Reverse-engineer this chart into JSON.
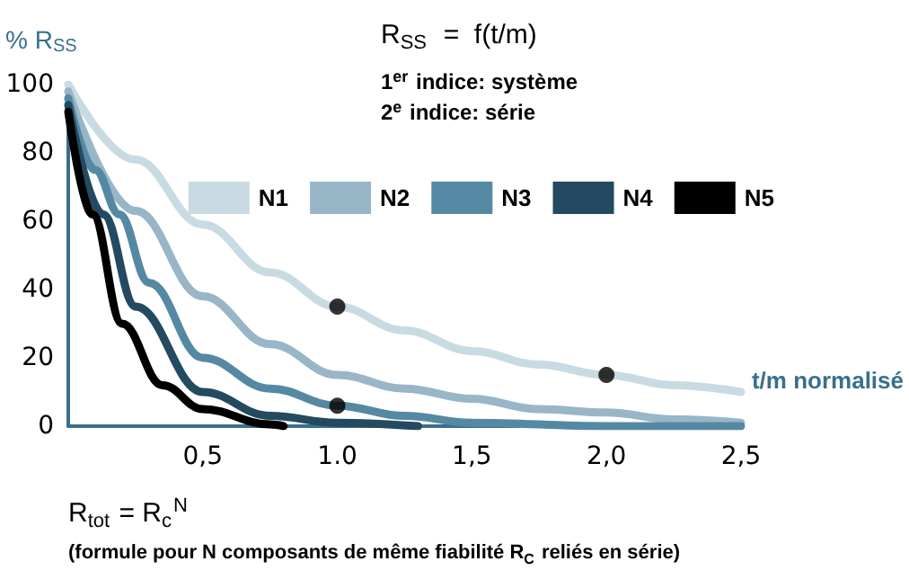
{
  "chart_data": {
    "type": "line",
    "ylabel": "% R$_{SS}$",
    "xlabel": "t/m normalisé",
    "annotations": [
      "R$_{SS}$  =  f(t/m)",
      "1$^{er}$ indice: système",
      "2$^{e}$ indice: série",
      "R$_{tot}$ = R$_{c}$$^{N}$",
      "(formule pour N composants de même fiabilité R$_{C}$ reliés en série)"
    ],
    "xlim": [
      0,
      2.5
    ],
    "ylim": [
      0,
      100
    ],
    "xticks": [
      {
        "value": 0,
        "label": null
      },
      {
        "value": 0.5,
        "label": "0,5"
      },
      {
        "value": 1,
        "label": "1.0"
      },
      {
        "value": 1.5,
        "label": "1,5"
      },
      {
        "value": 2,
        "label": "2,0"
      },
      {
        "value": 2.5,
        "label": "2,5"
      }
    ],
    "yticks": [
      0,
      20,
      40,
      60,
      80,
      100
    ],
    "grid": false,
    "legend": "top right",
    "marker": "none",
    "series": [
      {
        "name": "N1",
        "color": "#c8dbe2",
        "x": [
          0,
          0.25,
          0.5,
          0.75,
          1,
          1.25,
          1.5,
          1.75,
          2,
          2.25,
          2.5
        ],
        "values": [
          100,
          78,
          59,
          45,
          35,
          28,
          22,
          18,
          15,
          12,
          10
        ]
      },
      {
        "name": "N2",
        "color": "#98b6c8",
        "x": [
          0,
          0.25,
          0.5,
          0.75,
          1,
          1.25,
          1.5,
          1.75,
          2,
          2.25,
          2.5
        ],
        "values": [
          98,
          63,
          38,
          24,
          15,
          11,
          8,
          5,
          4,
          2,
          1
        ]
      },
      {
        "name": "N3",
        "color": "#5589a3",
        "x": [
          0,
          0.1,
          0.19,
          0.3,
          0.5,
          0.75,
          1,
          1.25,
          1.5,
          2,
          2.5
        ],
        "values": [
          96,
          75,
          62,
          42,
          20,
          11,
          6,
          3,
          1,
          0,
          0
        ]
      },
      {
        "name": "N4",
        "color": "#234a60",
        "x": [
          0,
          0.13,
          0.25,
          0.5,
          0.75,
          1,
          1.3
        ],
        "values": [
          94,
          62,
          35,
          10,
          3,
          1,
          0
        ]
      },
      {
        "name": "N5",
        "color": "#000000",
        "x": [
          0,
          0.09,
          0.2,
          0.35,
          0.5,
          0.75,
          0.8
        ],
        "values": [
          92,
          62,
          30,
          12,
          5,
          0.5,
          0
        ]
      },
      {
        "type": "scatter",
        "color": "#000000",
        "marker": "circle",
        "x": [
          1,
          2,
          1
        ],
        "values": [
          35,
          15,
          6
        ]
      }
    ]
  }
}
